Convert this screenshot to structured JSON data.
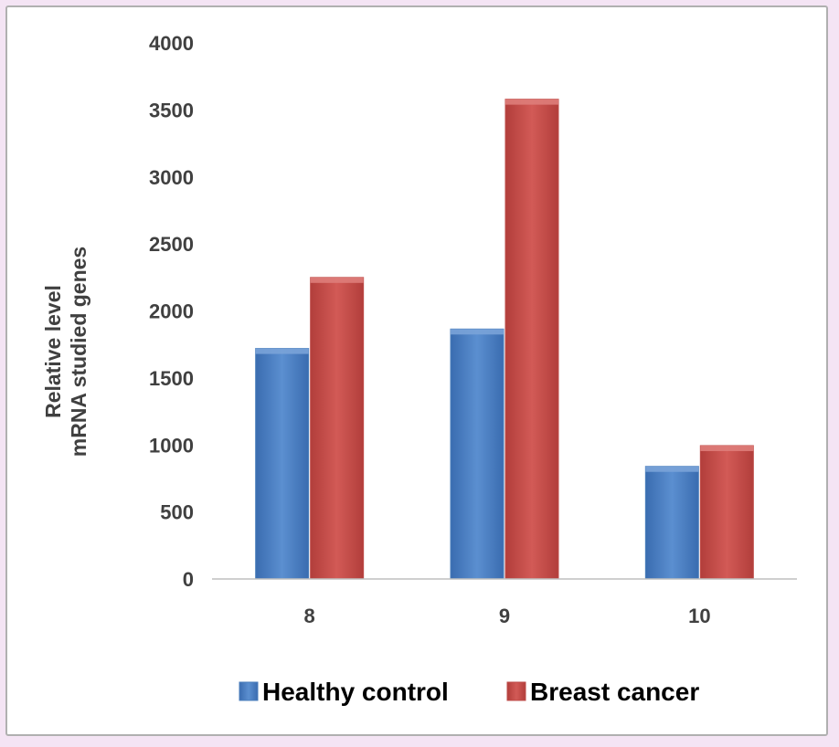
{
  "chart_data": {
    "type": "bar",
    "categories": [
      "8",
      "9",
      "10"
    ],
    "series": [
      {
        "name": "Healthy control",
        "values": [
          1720,
          1865,
          840
        ],
        "color": "#4a7ebb"
      },
      {
        "name": "Breast cancer",
        "values": [
          2250,
          3580,
          995
        ],
        "color": "#be4b48"
      }
    ],
    "ylabel_lines": [
      "Relative level",
      "mRNA  studied genes"
    ],
    "xlabel": "",
    "ylim": [
      0,
      4000
    ],
    "yticks": [
      "0",
      "500",
      "1000",
      "1500",
      "2000",
      "2500",
      "3000",
      "3500",
      "4000"
    ],
    "grid": false,
    "legend_position": "bottom"
  }
}
